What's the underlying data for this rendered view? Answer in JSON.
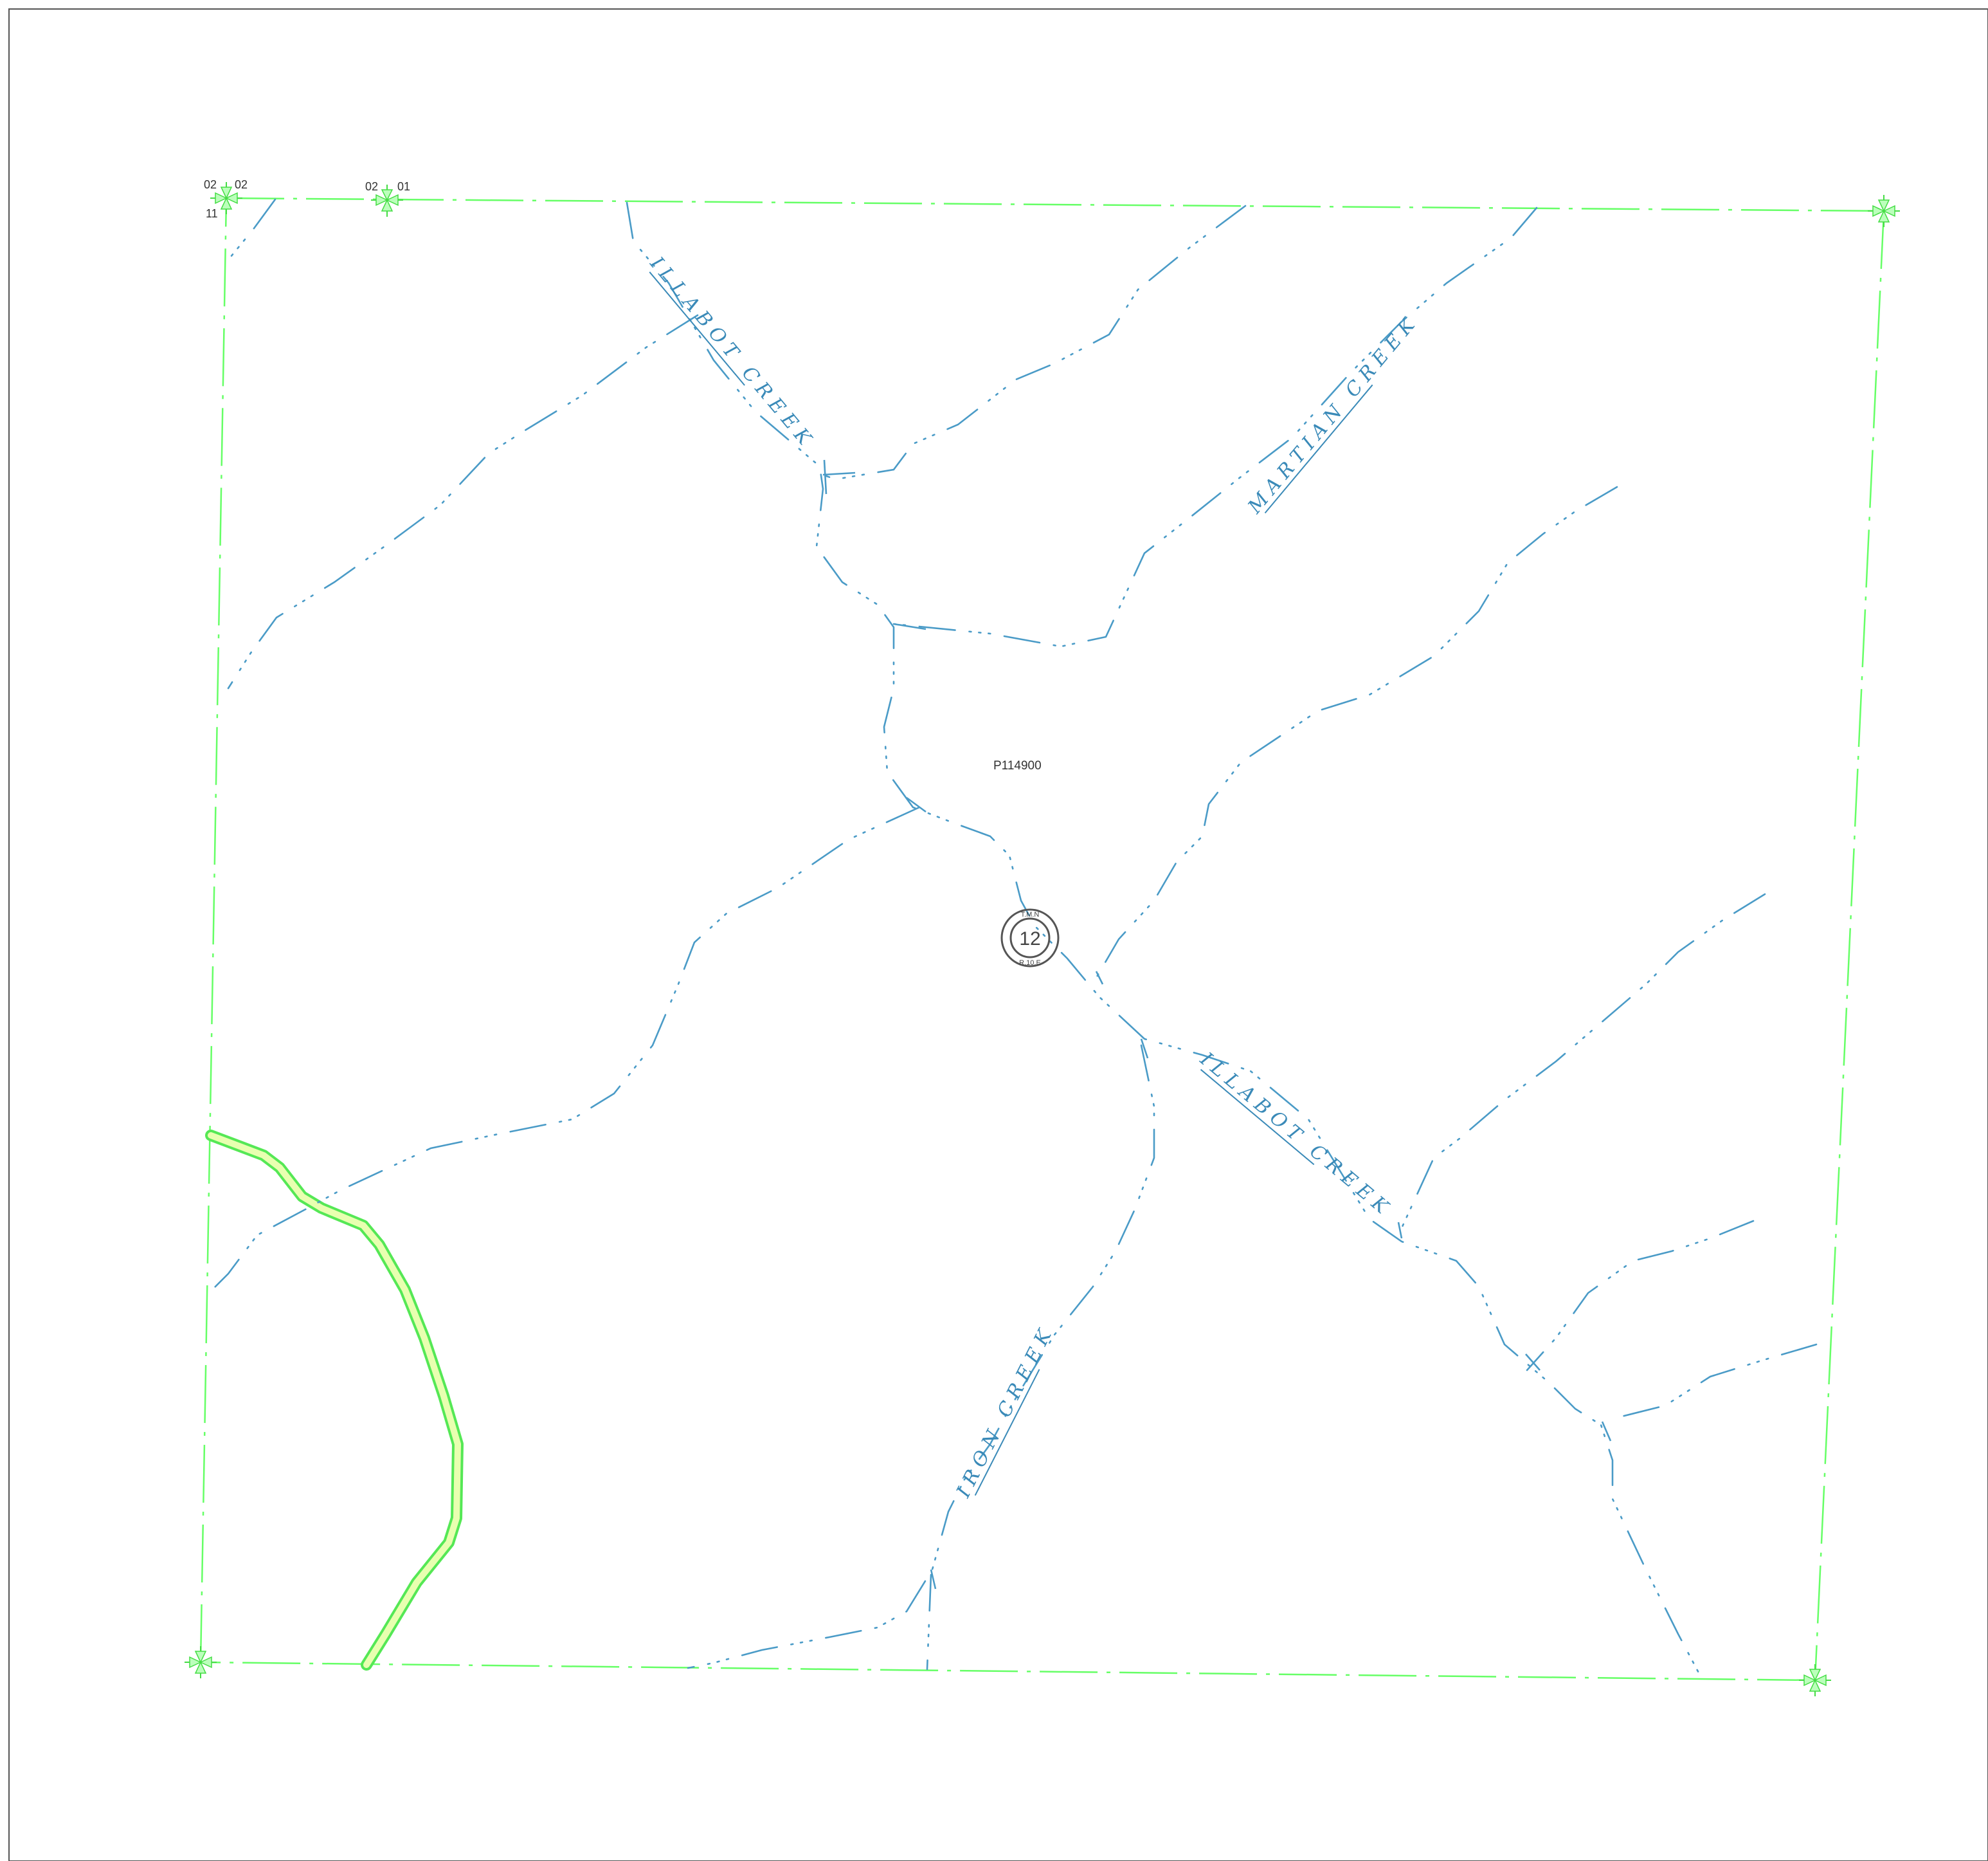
{
  "map": {
    "parcel_id": "P114900",
    "section": {
      "number": "12",
      "township": "T.M.N",
      "range": "R.10.E"
    },
    "corner_labels": {
      "nw_left": "02",
      "nw_right": "02",
      "nw_below": "11",
      "n_left": "02",
      "n_right": "01"
    },
    "creeks": [
      {
        "name": "ILLABOT CREEK"
      },
      {
        "name": "MARTIAN CREEK"
      },
      {
        "name": "ILLABOT CREEK"
      },
      {
        "name": "IRON CREEK"
      }
    ],
    "colors": {
      "section_line": "#66ff66",
      "stream": "#4a9bc7",
      "road": "#55e855",
      "frame": "#555555"
    }
  }
}
